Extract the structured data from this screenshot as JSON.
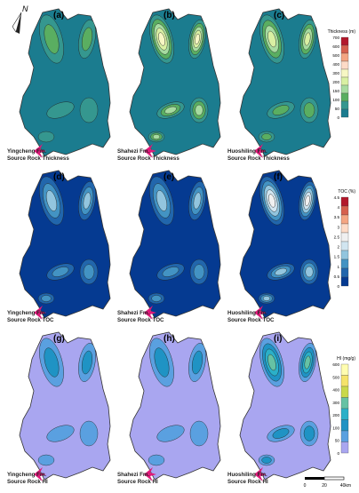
{
  "north_label": "N",
  "scalebar": {
    "ticks": [
      "0",
      "20",
      "40km"
    ]
  },
  "panels": [
    {
      "letter": "(a)",
      "caption": [
        "Yingcheng Fm.",
        "Source Rock Thickness"
      ],
      "scheme": "thickness",
      "level": 0.25
    },
    {
      "letter": "(b)",
      "caption": [
        "Shahezi Fm.",
        "Source Rock Thickness"
      ],
      "scheme": "thickness",
      "level": 0.6
    },
    {
      "letter": "(c)",
      "caption": [
        "Huoshiling Fm.",
        "Source Rock Thickness"
      ],
      "scheme": "thickness",
      "level": 0.45
    },
    {
      "letter": "(d)",
      "caption": [
        "Yingcheng Fm.",
        "Source Rock TOC"
      ],
      "scheme": "toc",
      "level": 0.3
    },
    {
      "letter": "(e)",
      "caption": [
        "Shahezi Fm.",
        "Source Rock TOC"
      ],
      "scheme": "toc",
      "level": 0.35
    },
    {
      "letter": "(f)",
      "caption": [
        "Huoshiling Fm.",
        "Source Rock TOC"
      ],
      "scheme": "toc",
      "level": 0.55
    },
    {
      "letter": "(g)",
      "caption": [
        "Yingcheng Fm.",
        "Source Rock HI"
      ],
      "scheme": "hi",
      "level": 0.3
    },
    {
      "letter": "(h)",
      "caption": [
        "Shahezi Fm.",
        "Source Rock HI"
      ],
      "scheme": "hi",
      "level": 0.35
    },
    {
      "letter": "(i)",
      "caption": [
        "Huoshiling Fm.",
        "Source Rock HI"
      ],
      "scheme": "hi",
      "level": 0.6
    }
  ],
  "legends": [
    {
      "title": "Thickness (m)",
      "ticks": [
        "700",
        "600",
        "500",
        "400",
        "300",
        "200",
        "150",
        "100",
        "50",
        "0"
      ],
      "colors": [
        "#b2182b",
        "#d6604d",
        "#f4a582",
        "#fddbc7",
        "#f7f7c4",
        "#d9f0a3",
        "#a6dba0",
        "#5aae61",
        "#35978f",
        "#1b7c8f"
      ]
    },
    {
      "title": "TOC (%)",
      "ticks": [
        "4.5",
        "4",
        "3.5",
        "3",
        "2.5",
        "2",
        "1.5",
        "1",
        "0.5",
        "0"
      ],
      "colors": [
        "#b2182b",
        "#d6604d",
        "#f4a582",
        "#fddbc7",
        "#f0f0f0",
        "#d1e5f0",
        "#92c5de",
        "#4393c3",
        "#2166ac",
        "#053a91"
      ]
    },
    {
      "title": "HI (mg/g)",
      "ticks": [
        "600",
        "500",
        "400",
        "300",
        "200",
        "100",
        "50",
        "0"
      ],
      "colors": [
        "#fffdb0",
        "#f5e36a",
        "#c9d94a",
        "#66c2a4",
        "#2bb0c8",
        "#1f93c4",
        "#5aa0e0",
        "#a9a6f0"
      ]
    }
  ]
}
